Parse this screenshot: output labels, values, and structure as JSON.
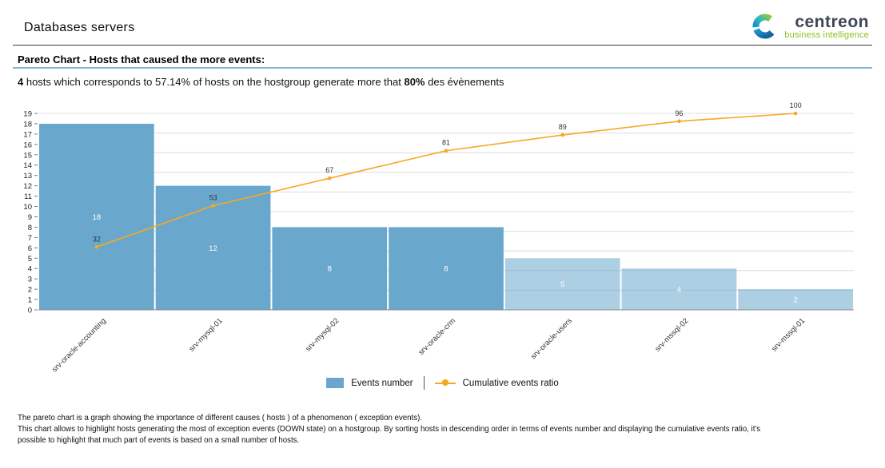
{
  "header": {
    "title": "Databases servers",
    "logo": {
      "brand": "centreon",
      "tagline": "business intelligence"
    }
  },
  "section_heading": "Pareto Chart - Hosts that caused the more events:",
  "summary": {
    "bold1": "4",
    "text1": " hosts which corresponds to 57.14% of hosts on the hostgroup generate more that ",
    "bold2": "80%",
    "text2": " des évènements"
  },
  "chart_data": {
    "type": "pareto (bar + line)",
    "title": "",
    "xlabel": "",
    "ylabel": "",
    "categories": [
      "srv-oracle-accounting",
      "srv-mysql-01",
      "srv-mysql-02",
      "srv-oracle-crm",
      "srv-oracle-users",
      "srv-mssql-02",
      "srv-mssql-01"
    ],
    "series": [
      {
        "name": "Events number",
        "type": "bar",
        "values": [
          18,
          12,
          8,
          8,
          5,
          4,
          2
        ],
        "highlight_count": 4
      },
      {
        "name": "Cumulative events ratio",
        "type": "line",
        "values": [
          32,
          53,
          67,
          81,
          89,
          96,
          100
        ],
        "unit": "%"
      }
    ],
    "ylim": [
      0,
      19
    ],
    "y_tick_step": 1,
    "right_axis": {
      "min": 0,
      "max": 100,
      "grid_step": 10
    },
    "grid": true,
    "legend_position": "bottom-center",
    "colors": {
      "bar": "#69A8CC",
      "bar_muted_opacity": 0.55,
      "line": "#F7A823",
      "grid": "#DCDCDC",
      "axis": "#8C8C8C",
      "tick_label": "#222222",
      "bar_value_label": "#FFFFFF",
      "point_label": "#333333",
      "category_label": "#333333"
    }
  },
  "legend": {
    "bar_label": "Events number",
    "line_label": "Cumulative events ratio"
  },
  "footer_lines": [
    "The pareto chart is a graph showing the importance of different causes ( hosts ) of a phenomenon ( exception events).",
    "This chart allows to highlight hosts generating the most of exception events (DOWN state) on a hostgroup. By sorting hosts in descending order in terms of events number and displaying the cumulative events ratio, it's",
    "possible to highlight that much part of events is based on a small number of hosts."
  ]
}
